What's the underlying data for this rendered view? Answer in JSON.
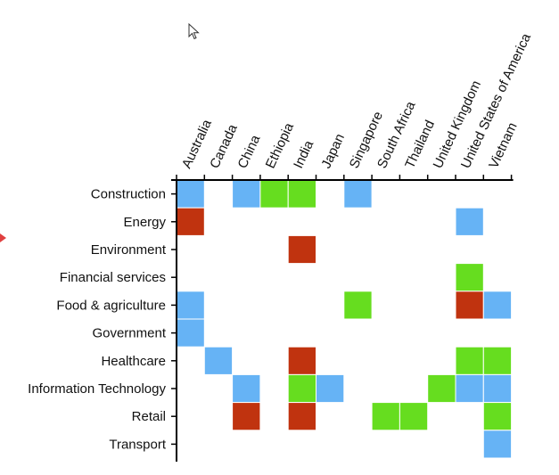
{
  "chart_data": {
    "type": "heatmap",
    "x_categories": [
      "Australia",
      "Canada",
      "China",
      "Ethiopia",
      "India",
      "Japan",
      "Singapore",
      "South Africa",
      "Thailand",
      "United Kingdom",
      "United States of America",
      "Vietnam"
    ],
    "y_categories": [
      "Construction",
      "Energy",
      "Environment",
      "Financial services",
      "Food & agriculture",
      "Government",
      "Healthcare",
      "Information Technology",
      "Retail",
      "Transport"
    ],
    "colors": {
      "blue": "#66b3f5",
      "green": "#66dd1f",
      "red": "#c0330f"
    },
    "cells": [
      {
        "x": "Australia",
        "y": "Construction",
        "color": "blue"
      },
      {
        "x": "China",
        "y": "Construction",
        "color": "blue"
      },
      {
        "x": "Ethiopia",
        "y": "Construction",
        "color": "green"
      },
      {
        "x": "India",
        "y": "Construction",
        "color": "green"
      },
      {
        "x": "Singapore",
        "y": "Construction",
        "color": "blue"
      },
      {
        "x": "Australia",
        "y": "Energy",
        "color": "red"
      },
      {
        "x": "United States of America",
        "y": "Energy",
        "color": "blue"
      },
      {
        "x": "India",
        "y": "Environment",
        "color": "red"
      },
      {
        "x": "United States of America",
        "y": "Financial services",
        "color": "green"
      },
      {
        "x": "Australia",
        "y": "Food & agriculture",
        "color": "blue"
      },
      {
        "x": "Singapore",
        "y": "Food & agriculture",
        "color": "green"
      },
      {
        "x": "United States of America",
        "y": "Food & agriculture",
        "color": "red"
      },
      {
        "x": "Vietnam",
        "y": "Food & agriculture",
        "color": "blue"
      },
      {
        "x": "Australia",
        "y": "Government",
        "color": "blue"
      },
      {
        "x": "Canada",
        "y": "Healthcare",
        "color": "blue"
      },
      {
        "x": "India",
        "y": "Healthcare",
        "color": "red"
      },
      {
        "x": "United States of America",
        "y": "Healthcare",
        "color": "green"
      },
      {
        "x": "Vietnam",
        "y": "Healthcare",
        "color": "green"
      },
      {
        "x": "China",
        "y": "Information Technology",
        "color": "blue"
      },
      {
        "x": "India",
        "y": "Information Technology",
        "color": "green"
      },
      {
        "x": "Japan",
        "y": "Information Technology",
        "color": "blue"
      },
      {
        "x": "United States of America",
        "y": "Information Technology",
        "color": "blue"
      },
      {
        "x": "Vietnam",
        "y": "Information Technology",
        "color": "blue"
      },
      {
        "x": "United Kingdom",
        "y": "Information Technology",
        "color": "green"
      },
      {
        "x": "China",
        "y": "Retail",
        "color": "red"
      },
      {
        "x": "India",
        "y": "Retail",
        "color": "red"
      },
      {
        "x": "South Africa",
        "y": "Retail",
        "color": "green"
      },
      {
        "x": "Thailand",
        "y": "Retail",
        "color": "green"
      },
      {
        "x": "Vietnam",
        "y": "Retail",
        "color": "green"
      },
      {
        "x": "Vietnam",
        "y": "Transport",
        "color": "blue"
      }
    ]
  }
}
